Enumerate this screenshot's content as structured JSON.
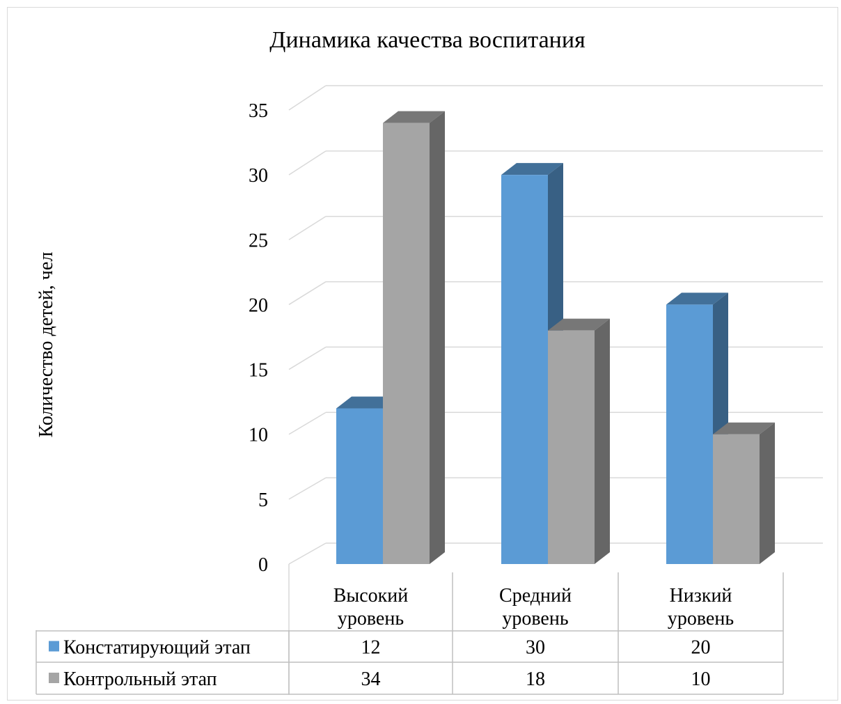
{
  "chart_data": {
    "type": "bar",
    "title": "Динамика качества воспитания",
    "xlabel": "",
    "ylabel": "Количество детей, чел",
    "categories": [
      [
        "Высокий",
        "уровень"
      ],
      [
        "Средний",
        "уровень"
      ],
      [
        "Низкий",
        "уровень"
      ]
    ],
    "series": [
      {
        "name": "Констатирующий этап",
        "values": [
          12,
          30,
          20
        ],
        "color": "#5b9bd5"
      },
      {
        "name": "Контрольный этап",
        "values": [
          34,
          18,
          10
        ],
        "color": "#a5a5a5"
      }
    ],
    "ylim": [
      0,
      35
    ],
    "yticks": [
      0,
      5,
      10,
      15,
      20,
      25,
      30,
      35
    ],
    "grid": true,
    "style": "3d-clustered-column",
    "legend": "data-table"
  }
}
